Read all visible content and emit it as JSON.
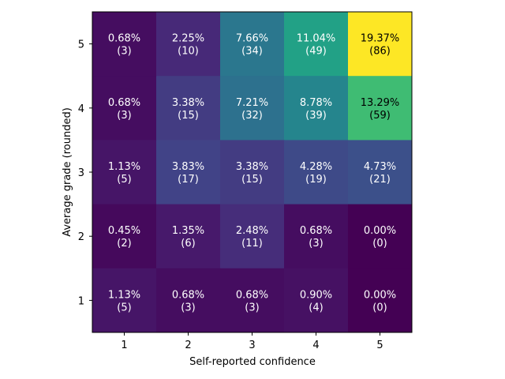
{
  "chart_data": {
    "type": "heatmap",
    "title": "",
    "xlabel": "Self-reported confidence",
    "ylabel": "Average grade (rounded)",
    "x_categories": [
      "1",
      "2",
      "3",
      "4",
      "5"
    ],
    "y_categories": [
      "1",
      "2",
      "3",
      "4",
      "5"
    ],
    "colormap": "viridis",
    "grid": false,
    "rows": [
      {
        "grade": "5",
        "counts": [
          3,
          10,
          34,
          49,
          86
        ],
        "percent_labels": [
          "0.68%",
          "2.25%",
          "7.66%",
          "11.04%",
          "19.37%"
        ],
        "count_labels": [
          "(3)",
          "(10)",
          "(34)",
          "(49)",
          "(86)"
        ]
      },
      {
        "grade": "4",
        "counts": [
          3,
          15,
          32,
          39,
          59
        ],
        "percent_labels": [
          "0.68%",
          "3.38%",
          "7.21%",
          "8.78%",
          "13.29%"
        ],
        "count_labels": [
          "(3)",
          "(15)",
          "(32)",
          "(39)",
          "(59)"
        ]
      },
      {
        "grade": "3",
        "counts": [
          5,
          17,
          15,
          19,
          21
        ],
        "percent_labels": [
          "1.13%",
          "3.83%",
          "3.38%",
          "4.28%",
          "4.73%"
        ],
        "count_labels": [
          "(5)",
          "(17)",
          "(15)",
          "(19)",
          "(21)"
        ]
      },
      {
        "grade": "2",
        "counts": [
          2,
          6,
          11,
          3,
          0
        ],
        "percent_labels": [
          "0.45%",
          "1.35%",
          "2.48%",
          "0.68%",
          "0.00%"
        ],
        "count_labels": [
          "(2)",
          "(6)",
          "(11)",
          "(3)",
          "(0)"
        ]
      },
      {
        "grade": "1",
        "counts": [
          5,
          3,
          3,
          4,
          0
        ],
        "percent_labels": [
          "1.13%",
          "0.68%",
          "0.68%",
          "0.90%",
          "0.00%"
        ],
        "count_labels": [
          "(5)",
          "(3)",
          "(3)",
          "(4)",
          "(0)"
        ]
      }
    ]
  }
}
